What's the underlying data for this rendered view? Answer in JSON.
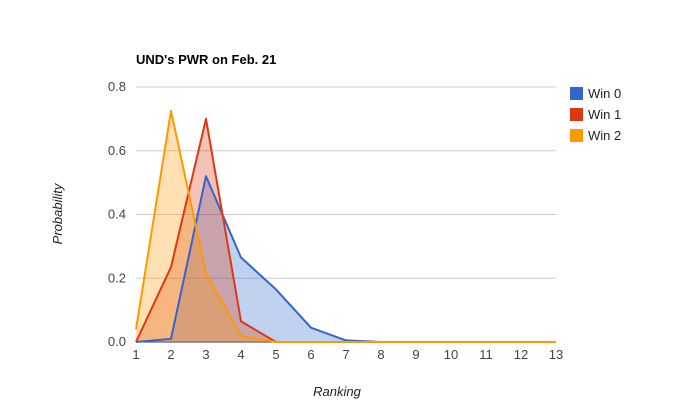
{
  "chart_data": {
    "type": "area",
    "title": "UND's PWR on Feb. 21",
    "xlabel": "Ranking",
    "ylabel": "Probability",
    "x": [
      1,
      2,
      3,
      4,
      5,
      6,
      7,
      8,
      9,
      10,
      11,
      12,
      13
    ],
    "xlim": [
      1,
      13
    ],
    "ylim": [
      0,
      0.8
    ],
    "x_ticks": [
      "1",
      "2",
      "3",
      "4",
      "5",
      "6",
      "7",
      "8",
      "9",
      "10",
      "11",
      "12",
      "13"
    ],
    "y_ticks": [
      "0.0",
      "0.2",
      "0.4",
      "0.6",
      "0.8"
    ],
    "y_tick_values": [
      0,
      0.2,
      0.4,
      0.6,
      0.8
    ],
    "grid": true,
    "legend_position": "right",
    "series": [
      {
        "name": "Win 0",
        "color": "#3366cc",
        "values": [
          0.0,
          0.01,
          0.52,
          0.265,
          0.165,
          0.045,
          0.005,
          0.0,
          0.0,
          0.0,
          0.0,
          0.0,
          0.0
        ]
      },
      {
        "name": "Win 1",
        "color": "#dc3912",
        "values": [
          0.0,
          0.235,
          0.7,
          0.065,
          0.0,
          0.0,
          0.0,
          0.0,
          0.0,
          0.0,
          0.0,
          0.0,
          0.0
        ]
      },
      {
        "name": "Win 2",
        "color": "#ff9900",
        "values": [
          0.04,
          0.725,
          0.215,
          0.02,
          0.0,
          0.0,
          0.0,
          0.0,
          0.0,
          0.0,
          0.0,
          0.0,
          0.0
        ]
      }
    ]
  }
}
